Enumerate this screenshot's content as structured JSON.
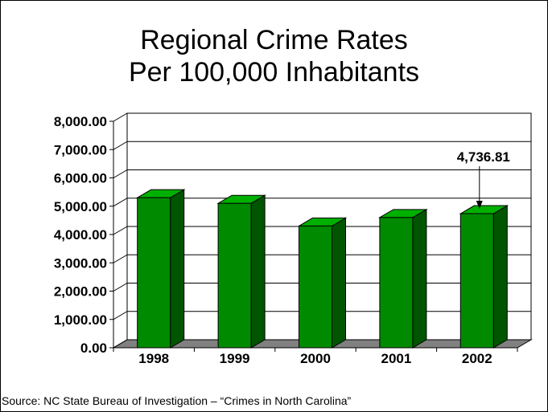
{
  "title_line1": "Regional Crime Rates",
  "title_line2": "Per 100,000 Inhabitants",
  "source": "Source: NC State Bureau of Investigation – “Crimes in North Carolina”",
  "colors": {
    "bar_front": "#008a00",
    "bar_side": "#005500",
    "bar_top": "#00b000",
    "floor": "#808080"
  },
  "chart_data": {
    "type": "bar",
    "categories": [
      "1998",
      "1999",
      "2000",
      "2001",
      "2002"
    ],
    "values": [
      5300,
      5100,
      4300,
      4600,
      4736.81
    ],
    "ylim": [
      0,
      8000
    ],
    "yticks": [
      "0.00",
      "1,000.00",
      "2,000.00",
      "3,000.00",
      "4,000.00",
      "5,000.00",
      "6,000.00",
      "7,000.00",
      "8,000.00"
    ],
    "annotation": {
      "category": "2002",
      "text": "4,736.81"
    },
    "grid": true,
    "legend": "none"
  }
}
